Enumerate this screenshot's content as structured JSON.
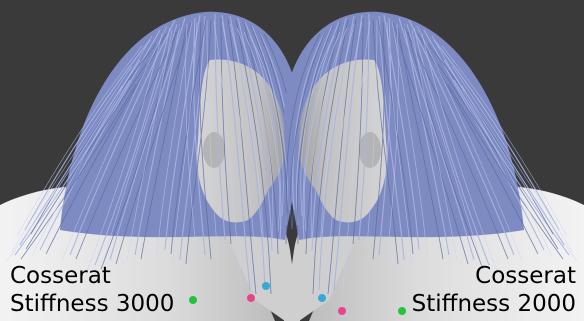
{
  "panels": [
    {
      "line1": "Cosserat",
      "line2": "Stiffness 3000"
    },
    {
      "line1": "Cosserat",
      "line2": "Stiffness 2000"
    }
  ],
  "colors": {
    "background": "#3a3a3b",
    "hair": "#8a98cc",
    "skin": "#e6e6e6",
    "marker_green": "#23c33b",
    "marker_pink": "#e8448e",
    "marker_cyan": "#37a9d8"
  }
}
